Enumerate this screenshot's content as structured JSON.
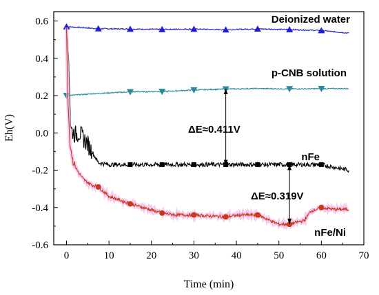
{
  "chart_data": {
    "type": "line",
    "xlabel": "Time (min)",
    "ylabel": "Eh(V)",
    "xlim": [
      -3,
      70
    ],
    "ylim": [
      -0.6,
      0.65
    ],
    "x_ticks": [
      0,
      10,
      20,
      30,
      40,
      50,
      60,
      70
    ],
    "y_ticks": [
      -0.6,
      -0.4,
      -0.2,
      0.0,
      0.2,
      0.4,
      0.6
    ],
    "x_tick_labels": [
      "0",
      "10",
      "20",
      "30",
      "40",
      "50",
      "60",
      "70"
    ],
    "y_tick_labels": [
      "-0.6",
      "-0.4",
      "-0.2",
      "0.0",
      "0.2",
      "0.4",
      "0.6"
    ],
    "grid": false,
    "series": [
      {
        "name": "Deionized water",
        "color": "#1f1fd6",
        "marker": "triangle-up",
        "x": [
          0,
          7.5,
          15,
          22.5,
          30,
          37.5,
          45,
          52.5,
          60,
          66.5
        ],
        "y": [
          0.57,
          0.559,
          0.557,
          0.555,
          0.557,
          0.553,
          0.558,
          0.554,
          0.549,
          0.535
        ],
        "marker_x": [
          0,
          7.5,
          15,
          22.5,
          30,
          37.5,
          45,
          52.5,
          60
        ]
      },
      {
        "name": "p-CNB solution",
        "color": "#2a8a9a",
        "marker": "triangle-down",
        "x": [
          0,
          7.5,
          15,
          22.5,
          30,
          37.5,
          45,
          52.5,
          60,
          66.5
        ],
        "y": [
          0.2,
          0.212,
          0.22,
          0.222,
          0.23,
          0.235,
          0.238,
          0.236,
          0.237,
          0.238
        ],
        "marker_x": [
          0,
          15,
          22.5,
          30,
          37.5,
          52.5,
          60
        ]
      },
      {
        "name": "nFe",
        "color": "#000000",
        "marker": "square",
        "x": [
          0,
          0.5,
          1,
          2,
          3,
          5,
          7.5,
          10,
          15,
          22.5,
          30,
          37.5,
          45,
          52.5,
          60,
          66.5
        ],
        "y": [
          0.57,
          0.4,
          0.02,
          -0.01,
          0.0,
          -0.06,
          -0.16,
          -0.17,
          -0.17,
          -0.17,
          -0.17,
          -0.17,
          -0.17,
          -0.17,
          -0.17,
          -0.2
        ],
        "marker_x": [
          15,
          22.5,
          30,
          37.5,
          45,
          52.5,
          60
        ]
      },
      {
        "name": "nFe/Ni",
        "color": "#c8381e",
        "marker": "circle",
        "x": [
          0,
          0.3,
          0.8,
          1.5,
          2.5,
          4,
          6,
          7.5,
          10,
          12.5,
          15,
          18,
          22.5,
          26,
          30,
          33,
          37.5,
          41,
          45,
          48,
          50,
          52.5,
          54,
          56,
          57.5,
          60,
          63,
          66.5
        ],
        "y": [
          0.57,
          0.2,
          -0.05,
          -0.15,
          -0.2,
          -0.25,
          -0.28,
          -0.29,
          -0.34,
          -0.36,
          -0.38,
          -0.4,
          -0.43,
          -0.44,
          -0.44,
          -0.445,
          -0.45,
          -0.44,
          -0.44,
          -0.47,
          -0.49,
          -0.49,
          -0.48,
          -0.47,
          -0.42,
          -0.4,
          -0.41,
          -0.41
        ],
        "marker_x": [
          7.5,
          15,
          22.5,
          30,
          37.5,
          45,
          52.5,
          60
        ]
      }
    ],
    "labels": {
      "deionized": "Deionized water",
      "pcnb": "p-CNB solution",
      "nfe": "nFe",
      "nfeni": "nFe/Ni",
      "delta1": "ΔE≈0.411V",
      "delta2": "ΔE≈0.319V"
    },
    "annotations": [
      {
        "label": "ΔE≈0.411V",
        "x": 37.5,
        "y_from": 0.237,
        "y_to": -0.174
      },
      {
        "label": "ΔE≈0.319V",
        "x": 52.5,
        "y_from": -0.17,
        "y_to": -0.489
      }
    ]
  }
}
